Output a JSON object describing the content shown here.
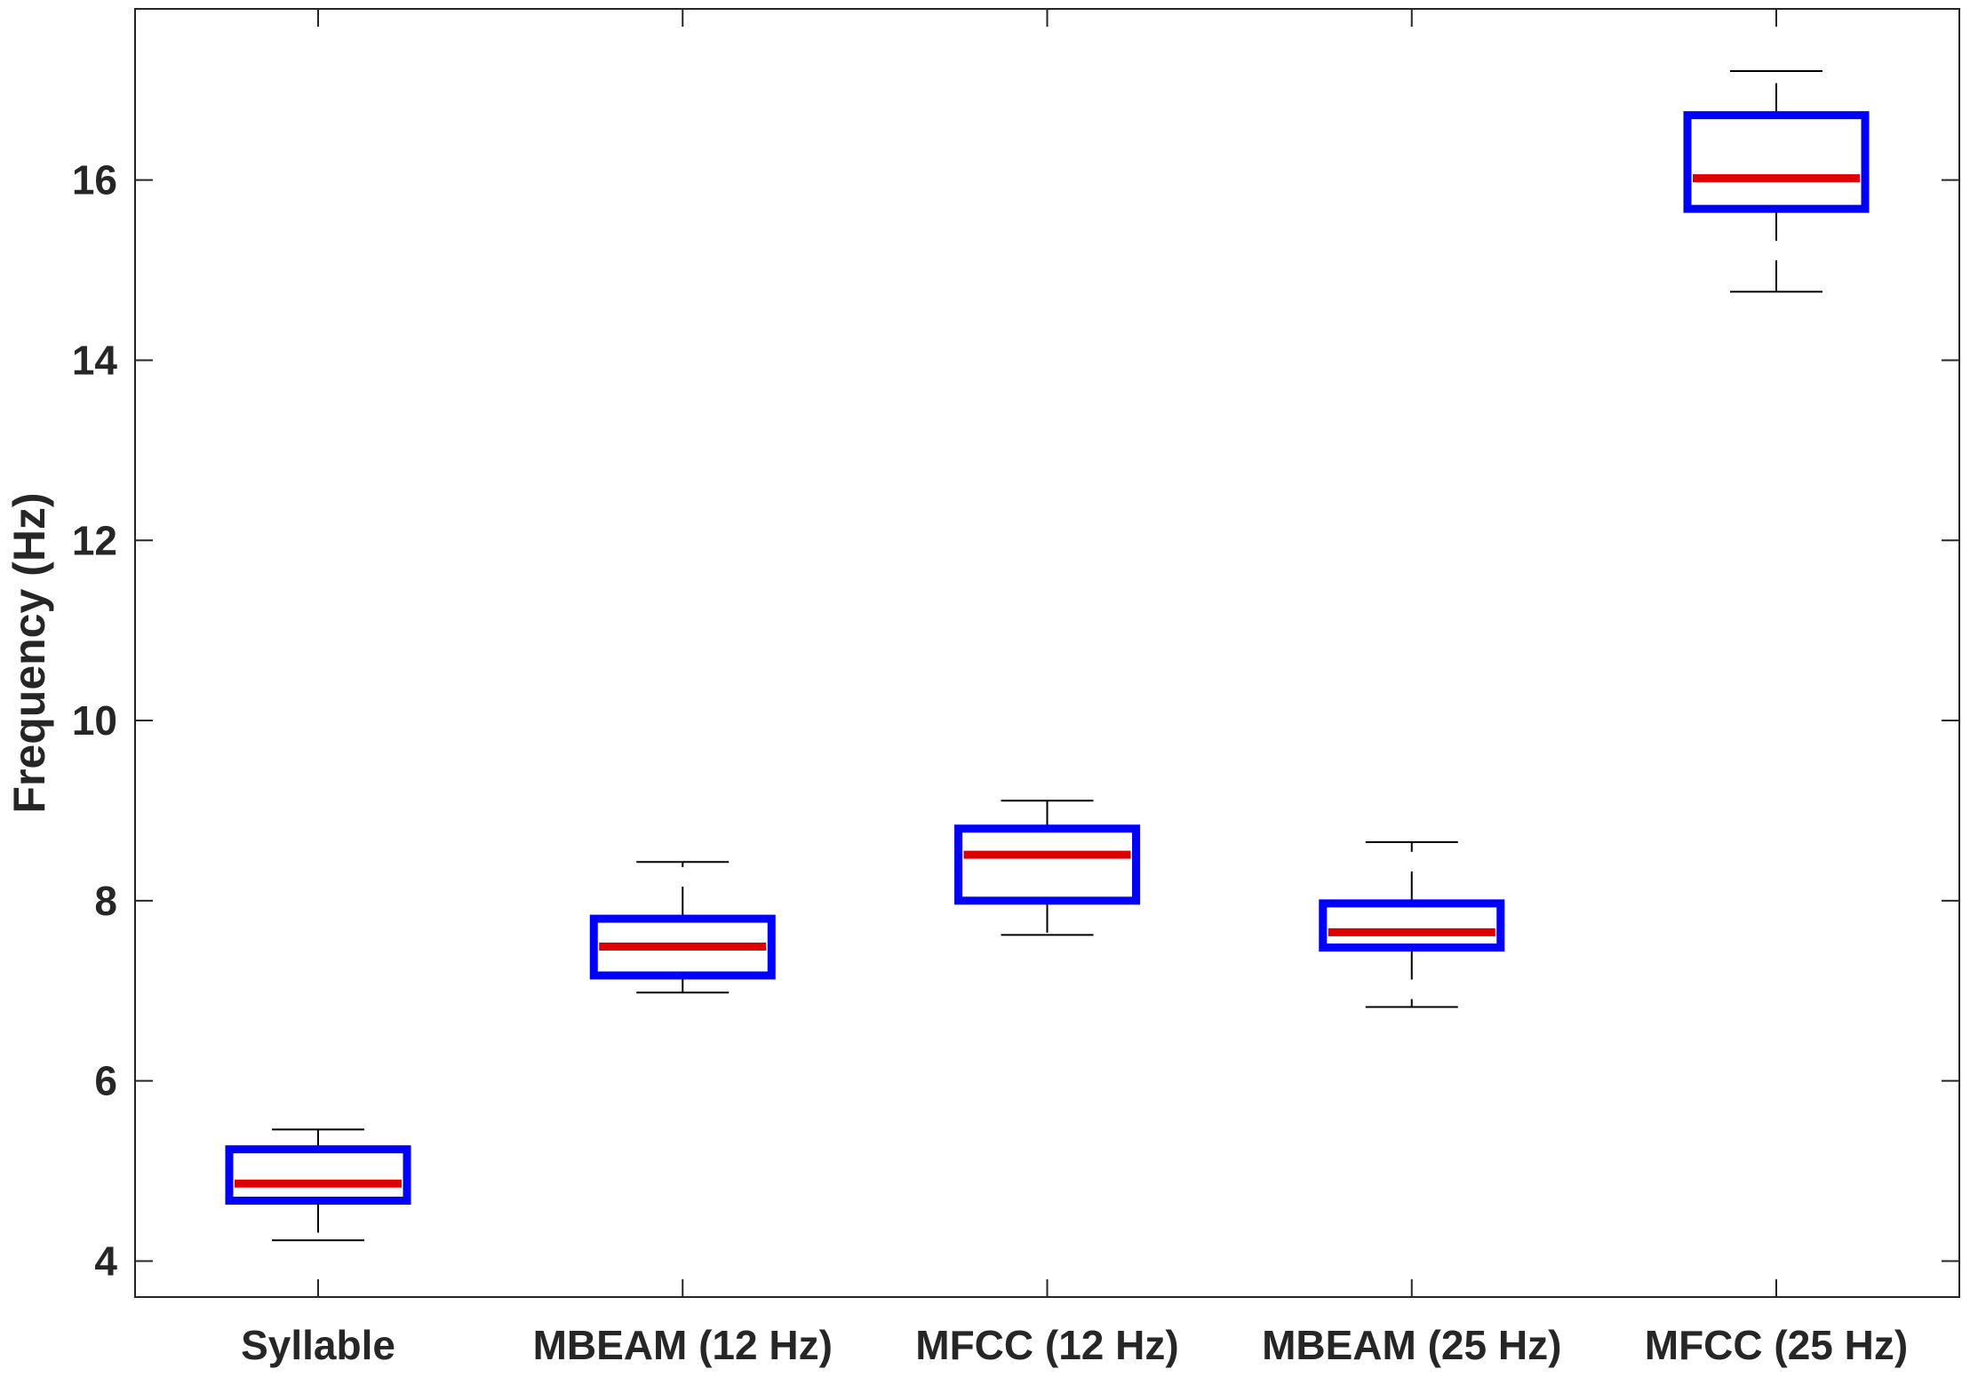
{
  "chart_data": {
    "type": "box",
    "title": "",
    "xlabel": "",
    "ylabel": "Frequency (Hz)",
    "ylim": [
      3.6,
      17.9
    ],
    "yticks": [
      4,
      6,
      8,
      10,
      12,
      14,
      16
    ],
    "grid": false,
    "categories": [
      "Syllable",
      "MBEAM (12 Hz)",
      "MFCC (12 Hz)",
      "MBEAM (25 Hz)",
      "MFCC (25 Hz)"
    ],
    "boxes": [
      {
        "whisker_low": 4.23,
        "q1": 4.67,
        "median": 4.86,
        "q3": 5.24,
        "whisker_high": 5.46
      },
      {
        "whisker_low": 6.98,
        "q1": 7.17,
        "median": 7.49,
        "q3": 7.8,
        "whisker_high": 8.43
      },
      {
        "whisker_low": 7.62,
        "q1": 8.0,
        "median": 8.51,
        "q3": 8.8,
        "whisker_high": 9.11
      },
      {
        "whisker_low": 6.82,
        "q1": 7.48,
        "median": 7.65,
        "q3": 7.97,
        "whisker_high": 8.65
      },
      {
        "whisker_low": 14.76,
        "q1": 15.68,
        "median": 16.02,
        "q3": 16.72,
        "whisker_high": 17.21
      }
    ],
    "colors": {
      "box": "#0000ff",
      "median": "#dd0000",
      "whisker": "#000000",
      "axis": "#262626"
    }
  }
}
